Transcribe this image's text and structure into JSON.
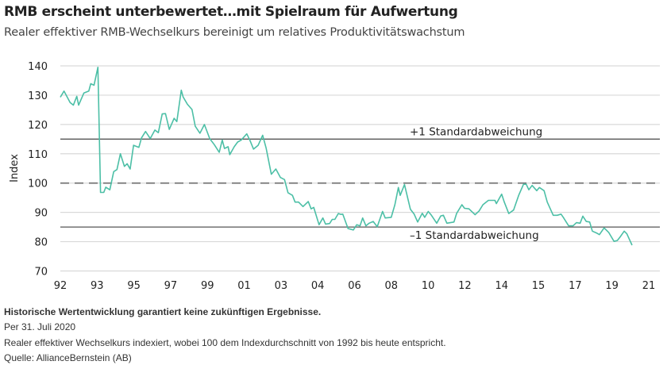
{
  "title": "RMB erscheint unterbewertet…mit Spielraum für Aufwertung",
  "subtitle": "Realer effektiver RMB-Wechselkurs bereinigt um relatives Produktivitätswachstum",
  "chart_data": {
    "type": "line",
    "ylabel": "Index",
    "xlim": [
      1992,
      2021
    ],
    "ylim": [
      70,
      140
    ],
    "y_ticks": [
      70,
      80,
      90,
      100,
      110,
      120,
      130,
      140
    ],
    "x_tick_labels": [
      "92",
      "93",
      "95",
      "97",
      "99",
      "01",
      "03",
      "04",
      "06",
      "08",
      "10",
      "12",
      "14",
      "15",
      "17",
      "19",
      "21"
    ],
    "grid": true,
    "line_color": "#4cbfa6",
    "reference_lines": [
      {
        "value": 115,
        "label": "+1 Standardabweichung",
        "style": "solid"
      },
      {
        "value": 100,
        "label": "",
        "style": "dashed"
      },
      {
        "value": 85,
        "label": "–1 Standardabweichung",
        "style": "solid"
      }
    ],
    "series": [
      {
        "points": [
          [
            1992.0,
            129.3
          ],
          [
            1992.18,
            131.4
          ],
          [
            1992.48,
            127.5
          ],
          [
            1992.64,
            126.6
          ],
          [
            1992.81,
            129.6
          ],
          [
            1992.9,
            126.6
          ],
          [
            1993.16,
            130.7
          ],
          [
            1993.4,
            131.4
          ],
          [
            1993.5,
            133.9
          ],
          [
            1993.66,
            133.4
          ],
          [
            1993.85,
            139.5
          ],
          [
            1993.98,
            96.8
          ],
          [
            1994.14,
            96.8
          ],
          [
            1994.24,
            98.6
          ],
          [
            1994.44,
            97.7
          ],
          [
            1994.63,
            103.9
          ],
          [
            1994.79,
            104.6
          ],
          [
            1994.96,
            110.0
          ],
          [
            1995.16,
            105.7
          ],
          [
            1995.29,
            106.6
          ],
          [
            1995.44,
            104.8
          ],
          [
            1995.61,
            112.9
          ],
          [
            1995.87,
            112.2
          ],
          [
            1996.0,
            115.4
          ],
          [
            1996.2,
            117.6
          ],
          [
            1996.43,
            115.2
          ],
          [
            1996.66,
            118.1
          ],
          [
            1996.83,
            117.2
          ],
          [
            1997.02,
            123.6
          ],
          [
            1997.18,
            123.7
          ],
          [
            1997.37,
            118.3
          ],
          [
            1997.61,
            122.1
          ],
          [
            1997.74,
            121.0
          ],
          [
            1997.96,
            131.7
          ],
          [
            1998.05,
            129.4
          ],
          [
            1998.26,
            126.9
          ],
          [
            1998.49,
            125.1
          ],
          [
            1998.65,
            119.4
          ],
          [
            1998.88,
            117.0
          ],
          [
            1999.1,
            120.0
          ],
          [
            1999.36,
            115.2
          ],
          [
            1999.59,
            113.1
          ],
          [
            1999.83,
            110.5
          ],
          [
            1999.98,
            114.7
          ],
          [
            2000.09,
            111.8
          ],
          [
            2000.27,
            112.4
          ],
          [
            2000.35,
            109.7
          ],
          [
            2000.57,
            112.4
          ],
          [
            2000.74,
            114.0
          ],
          [
            2000.92,
            114.7
          ],
          [
            2001.19,
            116.8
          ],
          [
            2001.35,
            114.5
          ],
          [
            2001.52,
            111.6
          ],
          [
            2001.75,
            112.9
          ],
          [
            2001.97,
            116.3
          ],
          [
            2002.14,
            112.0
          ],
          [
            2002.4,
            103.0
          ],
          [
            2002.62,
            104.8
          ],
          [
            2002.85,
            101.9
          ],
          [
            2003.05,
            101.2
          ],
          [
            2003.22,
            96.7
          ],
          [
            2003.44,
            95.8
          ],
          [
            2003.57,
            93.5
          ],
          [
            2003.74,
            93.5
          ],
          [
            2003.96,
            92.0
          ],
          [
            2004.22,
            93.7
          ],
          [
            2004.36,
            91.2
          ],
          [
            2004.49,
            91.7
          ],
          [
            2004.75,
            85.8
          ],
          [
            2004.94,
            88.1
          ],
          [
            2005.07,
            86.0
          ],
          [
            2005.27,
            86.2
          ],
          [
            2005.4,
            87.6
          ],
          [
            2005.53,
            87.6
          ],
          [
            2005.7,
            89.6
          ],
          [
            2005.83,
            89.3
          ],
          [
            2005.92,
            89.4
          ],
          [
            2006.18,
            84.5
          ],
          [
            2006.44,
            84.0
          ],
          [
            2006.61,
            85.8
          ],
          [
            2006.77,
            85.4
          ],
          [
            2006.9,
            88.1
          ],
          [
            2007.06,
            85.4
          ],
          [
            2007.22,
            86.3
          ],
          [
            2007.42,
            86.9
          ],
          [
            2007.62,
            85.1
          ],
          [
            2007.88,
            90.3
          ],
          [
            2008.01,
            88.1
          ],
          [
            2008.31,
            88.3
          ],
          [
            2008.49,
            92.6
          ],
          [
            2008.66,
            98.5
          ],
          [
            2008.75,
            95.8
          ],
          [
            2008.96,
            99.5
          ],
          [
            2009.25,
            91.1
          ],
          [
            2009.44,
            89.4
          ],
          [
            2009.61,
            86.7
          ],
          [
            2009.84,
            89.7
          ],
          [
            2009.96,
            88.3
          ],
          [
            2010.13,
            90.3
          ],
          [
            2010.29,
            89.0
          ],
          [
            2010.55,
            86.3
          ],
          [
            2010.75,
            88.8
          ],
          [
            2010.88,
            89.0
          ],
          [
            2011.05,
            86.3
          ],
          [
            2011.4,
            86.7
          ],
          [
            2011.53,
            89.6
          ],
          [
            2011.79,
            92.6
          ],
          [
            2011.92,
            91.4
          ],
          [
            2012.14,
            91.2
          ],
          [
            2012.44,
            89.2
          ],
          [
            2012.64,
            90.5
          ],
          [
            2012.83,
            92.6
          ],
          [
            2013.1,
            94.1
          ],
          [
            2013.42,
            94.1
          ],
          [
            2013.49,
            93.0
          ],
          [
            2013.75,
            96.2
          ],
          [
            2013.88,
            93.5
          ],
          [
            2014.1,
            89.6
          ],
          [
            2014.34,
            90.8
          ],
          [
            2014.59,
            95.8
          ],
          [
            2014.83,
            99.6
          ],
          [
            2014.96,
            99.6
          ],
          [
            2015.09,
            97.7
          ],
          [
            2015.25,
            99.2
          ],
          [
            2015.48,
            97.4
          ],
          [
            2015.61,
            98.5
          ],
          [
            2015.84,
            97.4
          ],
          [
            2016.0,
            93.5
          ],
          [
            2016.29,
            89.0
          ],
          [
            2016.49,
            89.0
          ],
          [
            2016.68,
            89.4
          ],
          [
            2016.79,
            88.3
          ],
          [
            2017.05,
            85.4
          ],
          [
            2017.27,
            85.4
          ],
          [
            2017.44,
            86.5
          ],
          [
            2017.62,
            86.3
          ],
          [
            2017.75,
            88.7
          ],
          [
            2017.92,
            86.9
          ],
          [
            2018.09,
            86.7
          ],
          [
            2018.22,
            83.6
          ],
          [
            2018.45,
            82.9
          ],
          [
            2018.57,
            82.4
          ],
          [
            2018.8,
            84.7
          ],
          [
            2019.03,
            83.1
          ],
          [
            2019.29,
            80.1
          ],
          [
            2019.45,
            80.4
          ],
          [
            2019.58,
            81.5
          ],
          [
            2019.79,
            83.6
          ],
          [
            2019.92,
            82.7
          ],
          [
            2020.18,
            78.8
          ]
        ]
      }
    ]
  },
  "footer": {
    "disclaimer": "Historische Wertentwicklung garantiert keine zukünftigen Ergebnisse.",
    "date": "Per 31. Juli 2020",
    "note": "Realer effektiver Wechselkurs indexiert, wobei 100 dem Indexdurchschnitt von 1992 bis heute entspricht.",
    "source": "Quelle: AllianceBernstein (AB)"
  }
}
